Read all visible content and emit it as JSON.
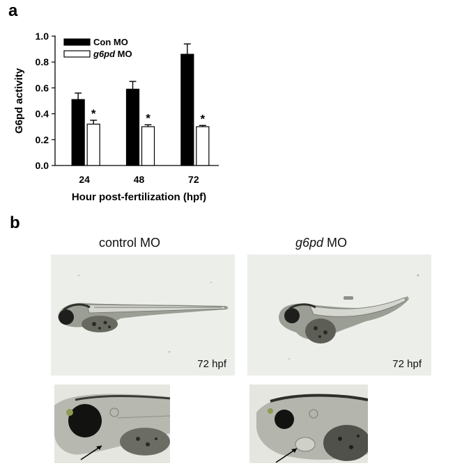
{
  "panels": {
    "a": "a",
    "b": "b"
  },
  "chart_data": {
    "type": "bar",
    "categories": [
      "24",
      "48",
      "72"
    ],
    "series": [
      {
        "name": "Con MO",
        "name_italic": "",
        "name_suffix": "Con MO",
        "values": [
          0.51,
          0.59,
          0.86
        ],
        "errors": [
          0.05,
          0.06,
          0.08
        ],
        "fill": "#000000"
      },
      {
        "name": "g6pd MO",
        "name_italic": "g6pd",
        "name_suffix": " MO",
        "values": [
          0.32,
          0.3,
          0.3
        ],
        "errors": [
          0.03,
          0.015,
          0.01
        ],
        "fill": "#ffffff"
      }
    ],
    "significance": [
      "*",
      "*",
      "*"
    ],
    "xlabel": "Hour post-fertilization (hpf)",
    "ylabel": "G6pd activity",
    "ylim": [
      0,
      1.0
    ],
    "yticks": [
      "0.0",
      "0.2",
      "0.4",
      "0.6",
      "0.8",
      "1.0"
    ],
    "grid": false,
    "legend_position": "top-left"
  },
  "images": {
    "control": {
      "label": "control MO",
      "label_italic": "",
      "label_suffix": "control MO",
      "stage": "72 hpf"
    },
    "g6pd": {
      "label": "g6pd MO",
      "label_italic": "g6pd",
      "label_suffix": " MO",
      "stage": "72 hpf"
    }
  },
  "colors": {
    "photo_bg": "#eceee9",
    "embryo_dark": "#1e1f1d",
    "embryo_mid": "#8a8d84",
    "yolk": "#6b6d64"
  }
}
